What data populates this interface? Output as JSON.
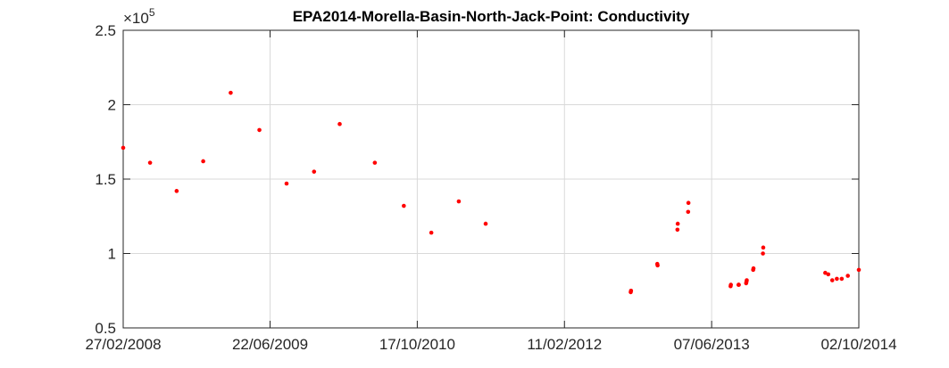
{
  "chart_data": {
    "type": "scatter",
    "title": "EPA2014-Morella-Basin-North-Jack-Point: Conductivity",
    "xlabel": "",
    "ylabel": "",
    "exponent": {
      "base": "×10",
      "power": "5"
    },
    "xlim": [
      "2008-02-27",
      "2014-10-02"
    ],
    "ylim": [
      0.5,
      2.5
    ],
    "x_ticks": [
      {
        "date": "2008-02-27",
        "label": "27/02/2008"
      },
      {
        "date": "2009-06-22",
        "label": "22/06/2009"
      },
      {
        "date": "2010-10-17",
        "label": "17/10/2010"
      },
      {
        "date": "2012-02-11",
        "label": "11/02/2012"
      },
      {
        "date": "2013-06-07",
        "label": "07/06/2013"
      },
      {
        "date": "2014-10-02",
        "label": "02/10/2014"
      }
    ],
    "y_ticks": [
      {
        "value": 0.5,
        "label": "0.5"
      },
      {
        "value": 1,
        "label": "1"
      },
      {
        "value": 1.5,
        "label": "1.5"
      },
      {
        "value": 2,
        "label": "2"
      },
      {
        "value": 2.5,
        "label": "2.5"
      }
    ],
    "grid": true,
    "marker_color": "#ff0000",
    "series": [
      {
        "points": [
          {
            "x": "2008-02-27",
            "y": 1.71
          },
          {
            "x": "2008-05-25",
            "y": 1.61
          },
          {
            "x": "2008-08-20",
            "y": 1.42
          },
          {
            "x": "2008-11-15",
            "y": 1.62
          },
          {
            "x": "2009-02-13",
            "y": 2.08
          },
          {
            "x": "2009-05-18",
            "y": 1.83
          },
          {
            "x": "2009-08-15",
            "y": 1.47
          },
          {
            "x": "2009-11-13",
            "y": 1.55
          },
          {
            "x": "2010-02-05",
            "y": 1.87
          },
          {
            "x": "2010-05-31",
            "y": 1.61
          },
          {
            "x": "2010-09-03",
            "y": 1.32
          },
          {
            "x": "2010-12-02",
            "y": 1.14
          },
          {
            "x": "2011-03-02",
            "y": 1.35
          },
          {
            "x": "2011-05-29",
            "y": 1.2
          },
          {
            "x": "2012-09-15",
            "y": 0.74
          },
          {
            "x": "2012-09-16",
            "y": 0.75
          },
          {
            "x": "2012-12-11",
            "y": 0.93
          },
          {
            "x": "2012-12-12",
            "y": 0.92
          },
          {
            "x": "2013-02-15",
            "y": 1.16
          },
          {
            "x": "2013-02-16",
            "y": 1.2
          },
          {
            "x": "2013-03-22",
            "y": 1.28
          },
          {
            "x": "2013-03-23",
            "y": 1.34
          },
          {
            "x": "2013-08-08",
            "y": 0.78
          },
          {
            "x": "2013-08-09",
            "y": 0.79
          },
          {
            "x": "2013-09-03",
            "y": 0.79
          },
          {
            "x": "2013-09-04",
            "y": 0.79
          },
          {
            "x": "2013-09-28",
            "y": 0.8
          },
          {
            "x": "2013-09-29",
            "y": 0.81
          },
          {
            "x": "2013-09-30",
            "y": 0.82
          },
          {
            "x": "2013-10-21",
            "y": 0.89
          },
          {
            "x": "2013-10-22",
            "y": 0.9
          },
          {
            "x": "2013-11-22",
            "y": 1.0
          },
          {
            "x": "2013-11-23",
            "y": 1.04
          },
          {
            "x": "2014-06-14",
            "y": 0.87
          },
          {
            "x": "2014-06-24",
            "y": 0.86
          },
          {
            "x": "2014-07-07",
            "y": 0.82
          },
          {
            "x": "2014-07-22",
            "y": 0.83
          },
          {
            "x": "2014-08-07",
            "y": 0.83
          },
          {
            "x": "2014-08-27",
            "y": 0.85
          },
          {
            "x": "2014-10-02",
            "y": 0.89
          }
        ]
      }
    ]
  }
}
